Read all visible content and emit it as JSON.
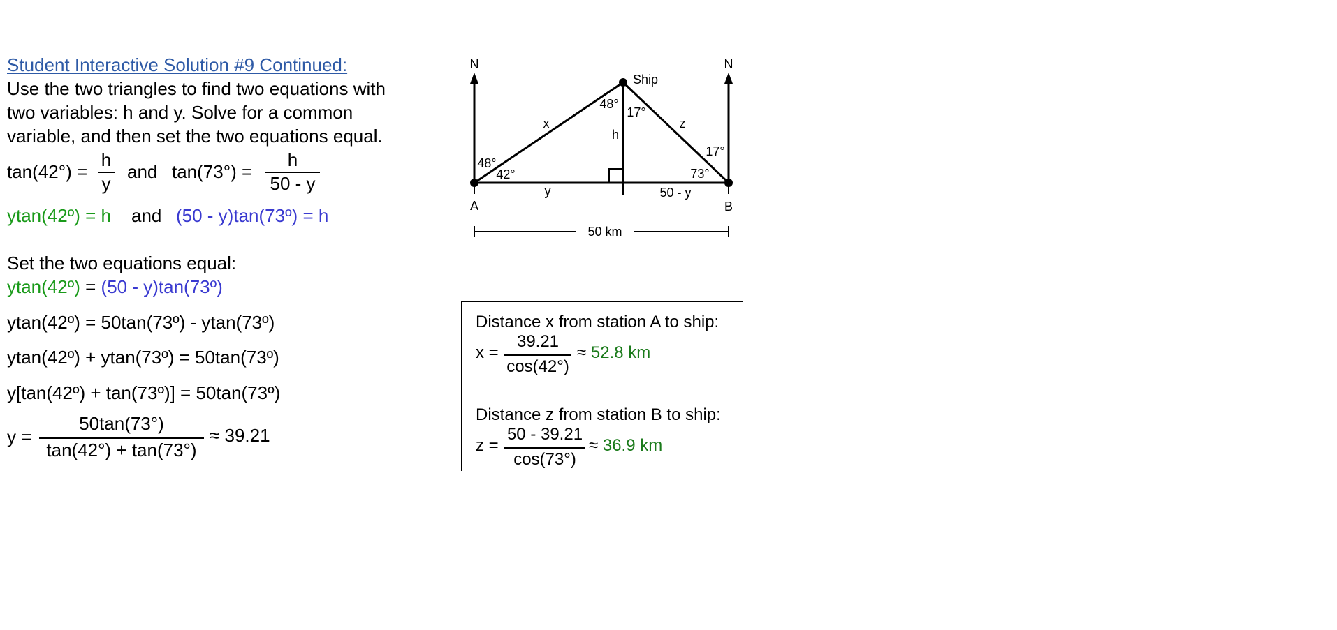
{
  "left": {
    "title": "Student Interactive Solution #9 Continued:",
    "instructions": [
      "Use the two triangles to find two equations with",
      "two variables: h and y.  Solve for a common",
      "variable, and then set the two equations equal."
    ],
    "eq1": {
      "lhs1": "tan(42°) =",
      "frac1_num": "h",
      "frac1_den": "y",
      "and": "and",
      "lhs2": "tan(73°) =",
      "frac2_num": "h",
      "frac2_den": "50 - y"
    },
    "eq2": {
      "green": "ytan(42º) = h",
      "and": "and",
      "blue": "(50 - y)tan(73º) = h"
    },
    "set_equal_label": "Set the two equations equal:",
    "eq3": {
      "green": "ytan(42º)",
      "equals": "=",
      "blue": "(50 - y)tan(73º)"
    },
    "steps": [
      "ytan(42º) = 50tan(73º) - ytan(73º)",
      "ytan(42º) + ytan(73º) = 50tan(73º)",
      "y[tan(42º) + tan(73º)] = 50tan(73º)"
    ],
    "final": {
      "lhs": "y =",
      "num": "50tan(73°)",
      "den": "tan(42°) + tan(73°)",
      "result": "≈ 39.21"
    }
  },
  "diagram": {
    "north_left": "N",
    "north_right": "N",
    "ship": "Ship",
    "label_a": "A",
    "label_b": "B",
    "x": "x",
    "z": "z",
    "h": "h",
    "y": "y",
    "y_rest": "50 - y",
    "dist": "50 km",
    "angle_48_top": "48°",
    "angle_17_top": "17°",
    "angle_48_left": "48°",
    "angle_42": "42°",
    "angle_17_right": "17°",
    "angle_73": "73°"
  },
  "results": {
    "x_label": "Distance x from station A to ship:",
    "x_lhs": "x =",
    "x_num": "39.21",
    "x_den": "cos(42°)",
    "x_result": "≈",
    "x_value": "52.8 km",
    "z_label": "Distance z from station B to ship:",
    "z_lhs": "z =",
    "z_num": "50 - 39.21",
    "z_den": "cos(73°)",
    "z_result": "≈",
    "z_value": "36.9 km"
  }
}
